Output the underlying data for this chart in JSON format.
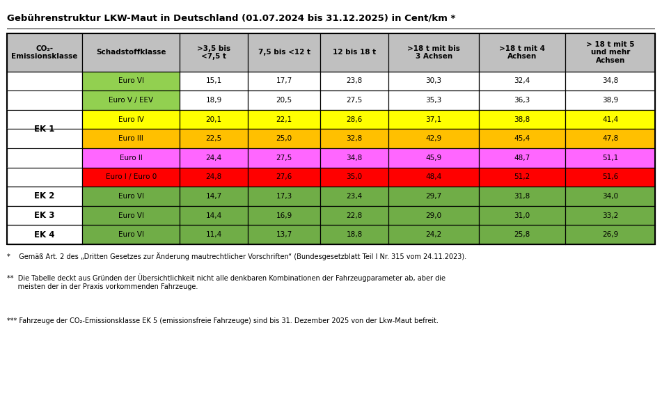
{
  "title": "Gebührenstruktur LKW-Maut in Deutschland (01.07.2024 bis 31.12.2025) in Cent/km *",
  "col_headers": [
    "CO₂-\nEmissionsklasse",
    "Schadstoffklasse",
    ">3,5 bis\n<7,5 t",
    "7,5 bis <12 t",
    "12 bis 18 t",
    ">18 t mit bis\n3 Achsen",
    ">18 t mit 4\nAchsen",
    "> 18 t mit 5\nund mehr\nAchsen"
  ],
  "rows": [
    {
      "ek": "EK 1",
      "ek_rowspan": 6,
      "schadstoff": "Euro VI",
      "values": [
        "15,1",
        "17,7",
        "23,8",
        "30,3",
        "32,4",
        "34,8"
      ],
      "schadstoff_color": "#92D050",
      "value_color": "#FFFFFF"
    },
    {
      "ek": "",
      "schadstoff": "Euro V / EEV",
      "values": [
        "18,9",
        "20,5",
        "27,5",
        "35,3",
        "36,3",
        "38,9"
      ],
      "schadstoff_color": "#92D050",
      "value_color": "#FFFFFF"
    },
    {
      "ek": "",
      "schadstoff": "Euro IV",
      "values": [
        "20,1",
        "22,1",
        "28,6",
        "37,1",
        "38,8",
        "41,4"
      ],
      "schadstoff_color": "#FFFF00",
      "value_color": "#FFFF00"
    },
    {
      "ek": "",
      "schadstoff": "Euro III",
      "values": [
        "22,5",
        "25,0",
        "32,8",
        "42,9",
        "45,4",
        "47,8"
      ],
      "schadstoff_color": "#FFC000",
      "value_color": "#FFC000"
    },
    {
      "ek": "",
      "schadstoff": "Euro II",
      "values": [
        "24,4",
        "27,5",
        "34,8",
        "45,9",
        "48,7",
        "51,1"
      ],
      "schadstoff_color": "#FF66FF",
      "value_color": "#FF66FF"
    },
    {
      "ek": "",
      "schadstoff": "Euro I / Euro 0",
      "values": [
        "24,8",
        "27,6",
        "35,0",
        "48,4",
        "51,2",
        "51,6"
      ],
      "schadstoff_color": "#FF0000",
      "value_color": "#FF0000"
    },
    {
      "ek": "EK 2",
      "ek_rowspan": 1,
      "schadstoff": "Euro VI",
      "values": [
        "14,7",
        "17,3",
        "23,4",
        "29,7",
        "31,8",
        "34,0"
      ],
      "schadstoff_color": "#70AD47",
      "value_color": "#70AD47"
    },
    {
      "ek": "EK 3",
      "ek_rowspan": 1,
      "schadstoff": "Euro VI",
      "values": [
        "14,4",
        "16,9",
        "22,8",
        "29,0",
        "31,0",
        "33,2"
      ],
      "schadstoff_color": "#70AD47",
      "value_color": "#70AD47"
    },
    {
      "ek": "EK 4",
      "ek_rowspan": 1,
      "schadstoff": "Euro VI",
      "values": [
        "11,4",
        "13,7",
        "18,8",
        "24,2",
        "25,8",
        "26,9"
      ],
      "schadstoff_color": "#70AD47",
      "value_color": "#70AD47"
    }
  ],
  "footnotes": [
    "*    Gemäß Art. 2 des „Dritten Gesetzes zur Änderung mautrechtlicher Vorschriften“ (Bundesgesetzblatt Teil I Nr. 315 vom 24.11.2023).",
    "**  Die Tabelle deckt aus Gründen der Übersichtlichkeit nicht alle denkbaren Kombinationen der Fahrzeugparameter ab, aber die\n     meisten der in der Praxis vorkommenden Fahrzeuge.",
    "*** Fahrzeuge der CO₂-Emissionsklasse EK 5 (emissionsfreie Fahrzeuge) sind bis 31. Dezember 2025 von der Lkw-Maut befreit."
  ],
  "header_bg": "#C0C0C0",
  "ek_bg": "#FFFFFF",
  "border_color": "#000000",
  "text_color": "#000000",
  "footnote_color": "#3A3A3A"
}
